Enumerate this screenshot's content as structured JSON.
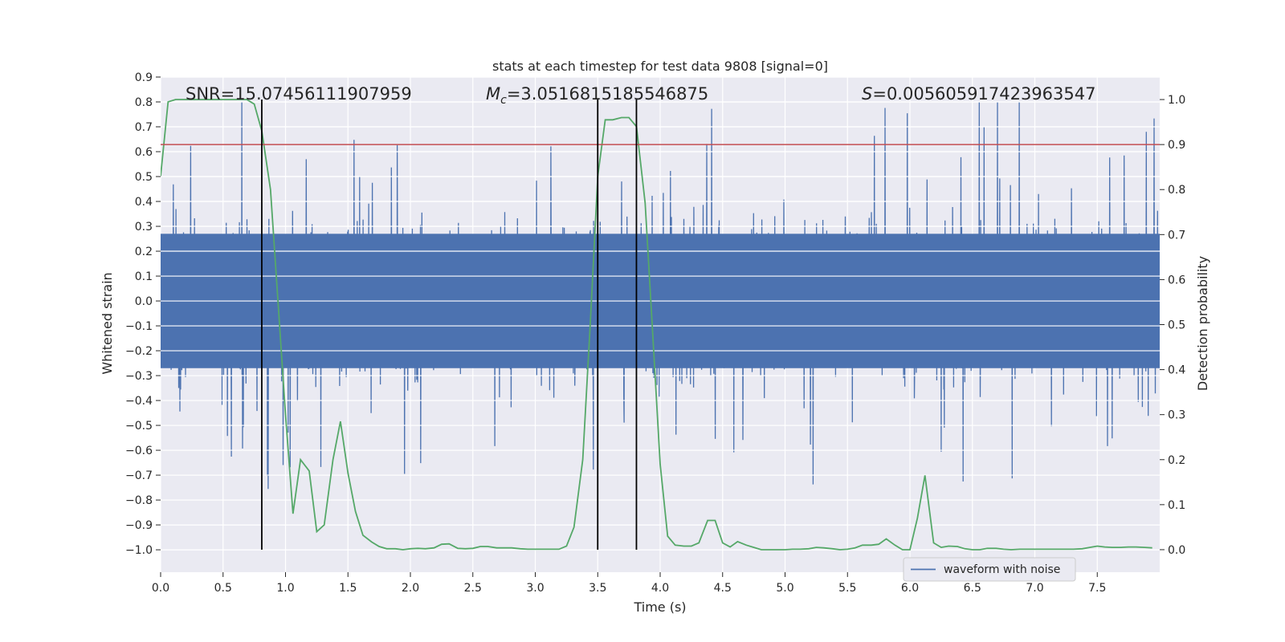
{
  "chart_data": {
    "type": "line",
    "title": "stats at each timestep for test data 9808 [signal=0]",
    "xlabel": "Time (s)",
    "ylabel_left": "Whitened strain",
    "ylabel_right": "Detection probability",
    "xlim": [
      0.0,
      8.0
    ],
    "ylim_left": [
      -1.09,
      0.9
    ],
    "ylim_right": [
      -0.05,
      1.05
    ],
    "xticks": [
      0.0,
      0.5,
      1.0,
      1.5,
      2.0,
      2.5,
      3.0,
      3.5,
      4.0,
      4.5,
      5.0,
      5.5,
      6.0,
      6.5,
      7.0,
      7.5
    ],
    "xtick_labels": [
      "0.0",
      "0.5",
      "1.0",
      "1.5",
      "2.0",
      "2.5",
      "3.0",
      "3.5",
      "4.0",
      "4.5",
      "5.0",
      "5.5",
      "6.0",
      "6.5",
      "7.0",
      "7.5"
    ],
    "yticks_left": [
      0.9,
      0.8,
      0.7,
      0.6,
      0.5,
      0.4,
      0.3,
      0.2,
      0.1,
      0.0,
      -0.1,
      -0.2,
      -0.3,
      -0.4,
      -0.5,
      -0.6,
      -0.7,
      -0.8,
      -0.9,
      -1.0
    ],
    "ytick_labels_left": [
      "0.9",
      "0.8",
      "0.7",
      "0.6",
      "0.5",
      "0.4",
      "0.3",
      "0.2",
      "0.1",
      "0.0",
      "−0.1",
      "−0.2",
      "−0.3",
      "−0.4",
      "−0.5",
      "−0.6",
      "−0.7",
      "−0.8",
      "−0.9",
      "−1.0"
    ],
    "yticks_right": [
      1.0,
      0.9,
      0.8,
      0.7,
      0.6,
      0.5,
      0.4,
      0.3,
      0.2,
      0.1,
      0.0
    ],
    "ytick_labels_right": [
      "1.0",
      "0.9",
      "0.8",
      "0.7",
      "0.6",
      "0.5",
      "0.4",
      "0.3",
      "0.2",
      "0.1",
      "0.0"
    ],
    "annotations": {
      "snr": "SNR=15.07456111907959",
      "mc_symbol": "M",
      "mc_sub": "c",
      "mc_value": "=3.0516815185546875",
      "s_symbol": "S",
      "s_value": "=0.005605917423963547"
    },
    "threshold_right": 0.9,
    "vertical_lines_x": [
      0.81,
      3.5,
      3.81
    ],
    "waveform": {
      "name": "waveform with noise",
      "color": "#4c72b0",
      "core_amplitude": 0.27,
      "sample_rate_hz": 512,
      "envelope": "noise, typically within ±0.3 with spikes to about +0.8 and -0.9"
    },
    "detection_probability": {
      "color": "#55a868",
      "x": [
        0.0,
        0.06,
        0.12,
        0.19,
        0.25,
        0.31,
        0.38,
        0.44,
        0.5,
        0.56,
        0.62,
        0.69,
        0.75,
        0.81,
        0.88,
        0.94,
        1.0,
        1.06,
        1.12,
        1.19,
        1.25,
        1.31,
        1.38,
        1.44,
        1.5,
        1.56,
        1.62,
        1.69,
        1.75,
        1.81,
        1.88,
        1.94,
        2.0,
        2.06,
        2.12,
        2.19,
        2.25,
        2.31,
        2.38,
        2.44,
        2.5,
        2.56,
        2.62,
        2.69,
        2.75,
        2.81,
        2.88,
        2.94,
        3.0,
        3.06,
        3.12,
        3.19,
        3.25,
        3.31,
        3.38,
        3.44,
        3.5,
        3.56,
        3.62,
        3.69,
        3.75,
        3.81,
        3.88,
        3.94,
        4.0,
        4.06,
        4.12,
        4.19,
        4.25,
        4.31,
        4.38,
        4.44,
        4.5,
        4.56,
        4.62,
        4.69,
        4.75,
        4.81,
        4.88,
        4.94,
        5.0,
        5.06,
        5.12,
        5.19,
        5.25,
        5.31,
        5.38,
        5.44,
        5.5,
        5.56,
        5.62,
        5.69,
        5.75,
        5.81,
        5.88,
        5.94,
        6.0,
        6.06,
        6.12,
        6.19,
        6.25,
        6.31,
        6.38,
        6.44,
        6.5,
        6.56,
        6.62,
        6.69,
        6.75,
        6.81,
        6.88,
        6.94,
        7.0,
        7.06,
        7.12,
        7.19,
        7.25,
        7.31,
        7.38,
        7.44,
        7.5,
        7.56,
        7.62,
        7.69,
        7.75,
        7.81,
        7.88,
        7.94
      ],
      "values": [
        0.83,
        0.995,
        1.0,
        1.0,
        1.0,
        1.0,
        1.0,
        1.0,
        1.0,
        1.0,
        1.0,
        1.0,
        0.99,
        0.93,
        0.8,
        0.55,
        0.3,
        0.08,
        0.2,
        0.175,
        0.04,
        0.055,
        0.2,
        0.285,
        0.17,
        0.085,
        0.032,
        0.017,
        0.007,
        0.002,
        0.002,
        0.0,
        0.002,
        0.003,
        0.002,
        0.004,
        0.012,
        0.013,
        0.003,
        0.002,
        0.003,
        0.007,
        0.007,
        0.004,
        0.004,
        0.004,
        0.002,
        0.001,
        0.001,
        0.001,
        0.001,
        0.001,
        0.008,
        0.05,
        0.2,
        0.5,
        0.83,
        0.955,
        0.955,
        0.96,
        0.96,
        0.94,
        0.77,
        0.48,
        0.19,
        0.03,
        0.01,
        0.008,
        0.008,
        0.015,
        0.065,
        0.065,
        0.015,
        0.006,
        0.018,
        0.01,
        0.005,
        0.0,
        0.0,
        0.0,
        0.0,
        0.001,
        0.001,
        0.002,
        0.005,
        0.004,
        0.002,
        0.0,
        0.001,
        0.004,
        0.01,
        0.01,
        0.012,
        0.024,
        0.01,
        0.0,
        0.0,
        0.07,
        0.165,
        0.015,
        0.005,
        0.008,
        0.007,
        0.002,
        0.0,
        0.0,
        0.003,
        0.003,
        0.001,
        0.0,
        0.001,
        0.001,
        0.001,
        0.001,
        0.001,
        0.001,
        0.001,
        0.001,
        0.002,
        0.005,
        0.008,
        0.006,
        0.005,
        0.005,
        0.006,
        0.006,
        0.005,
        0.004
      ]
    },
    "threshold_color": "#c44e52",
    "legend": {
      "label": "waveform with noise",
      "placement": "lower-right"
    }
  }
}
